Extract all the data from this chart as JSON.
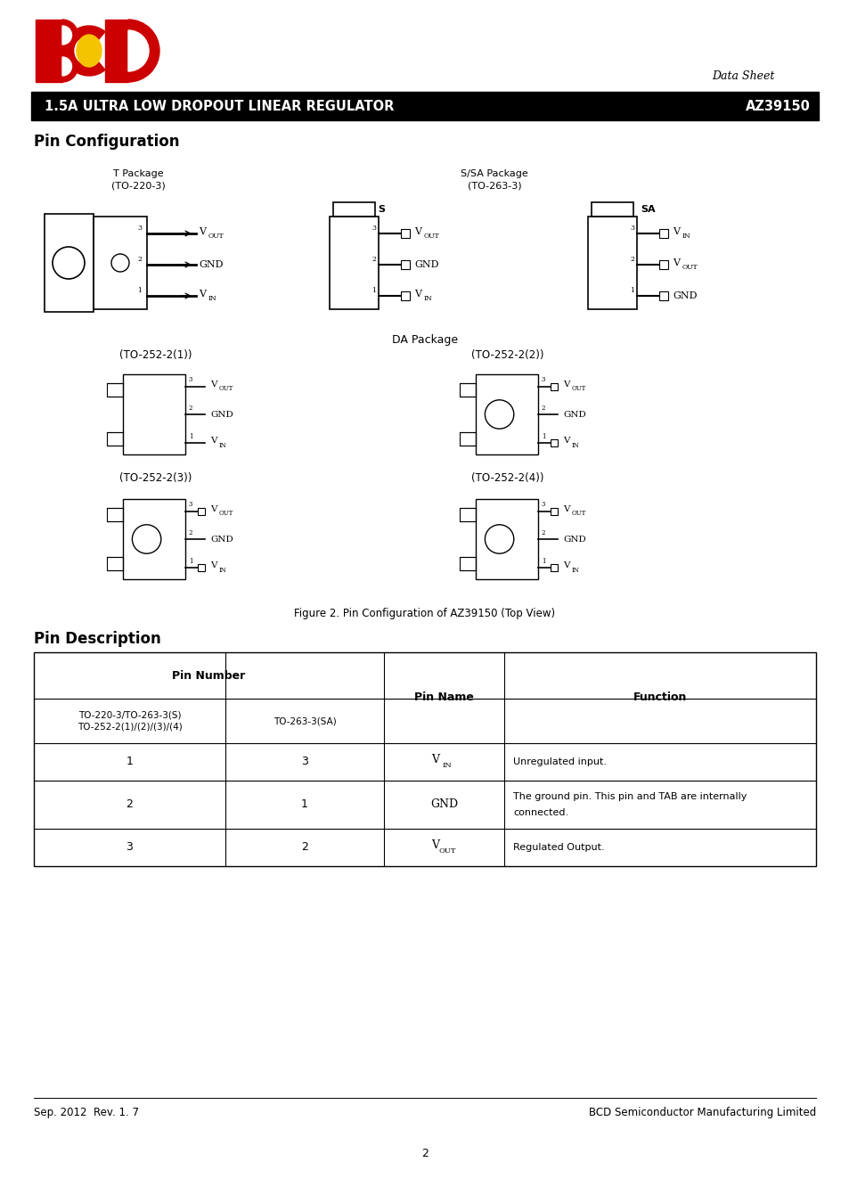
{
  "page_width": 9.54,
  "page_height": 13.5,
  "bg_color": "#ffffff",
  "datasheet_label": "Data Sheet",
  "title_bar_text": "1.5A ULTRA LOW DROPOUT LINEAR REGULATOR",
  "title_bar_part": "AZ39150",
  "pin_config_heading": "Pin Configuration",
  "pin_desc_heading": "Pin Description",
  "figure_caption": "Figure 2. Pin Configuration of AZ39150 (Top View)",
  "footer_left": "Sep. 2012  Rev. 1. 7",
  "footer_right": "BCD Semiconductor Manufacturing Limited",
  "page_number": "2"
}
